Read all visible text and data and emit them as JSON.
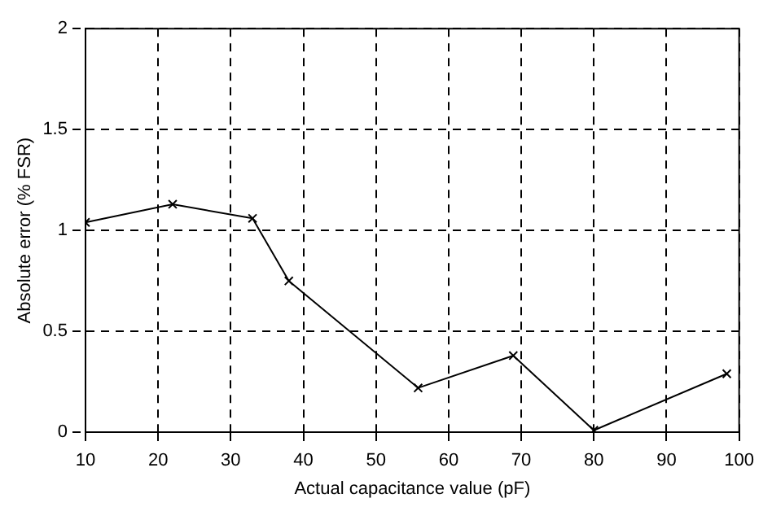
{
  "chart_data": {
    "type": "line",
    "xlabel": "Actual capacitance value (pF)",
    "ylabel": "Absolute error (% FSR)",
    "x": [
      10,
      22,
      33,
      38,
      55.8,
      68.9,
      80,
      98.3
    ],
    "series": [
      {
        "color": "#000000",
        "values": [
          1.04,
          1.13,
          1.06,
          0.75,
          0.22,
          0.38,
          0.01,
          0.29
        ]
      }
    ],
    "xlim": [
      10,
      100
    ],
    "xticks": [
      10,
      20,
      30,
      40,
      50,
      60,
      70,
      80,
      90,
      100
    ],
    "ylim": [
      0,
      2
    ],
    "yticks": [
      0,
      0.5,
      1,
      1.5,
      2
    ],
    "grid": true,
    "legend": false,
    "marker": "cross",
    "line_style": "solid"
  }
}
